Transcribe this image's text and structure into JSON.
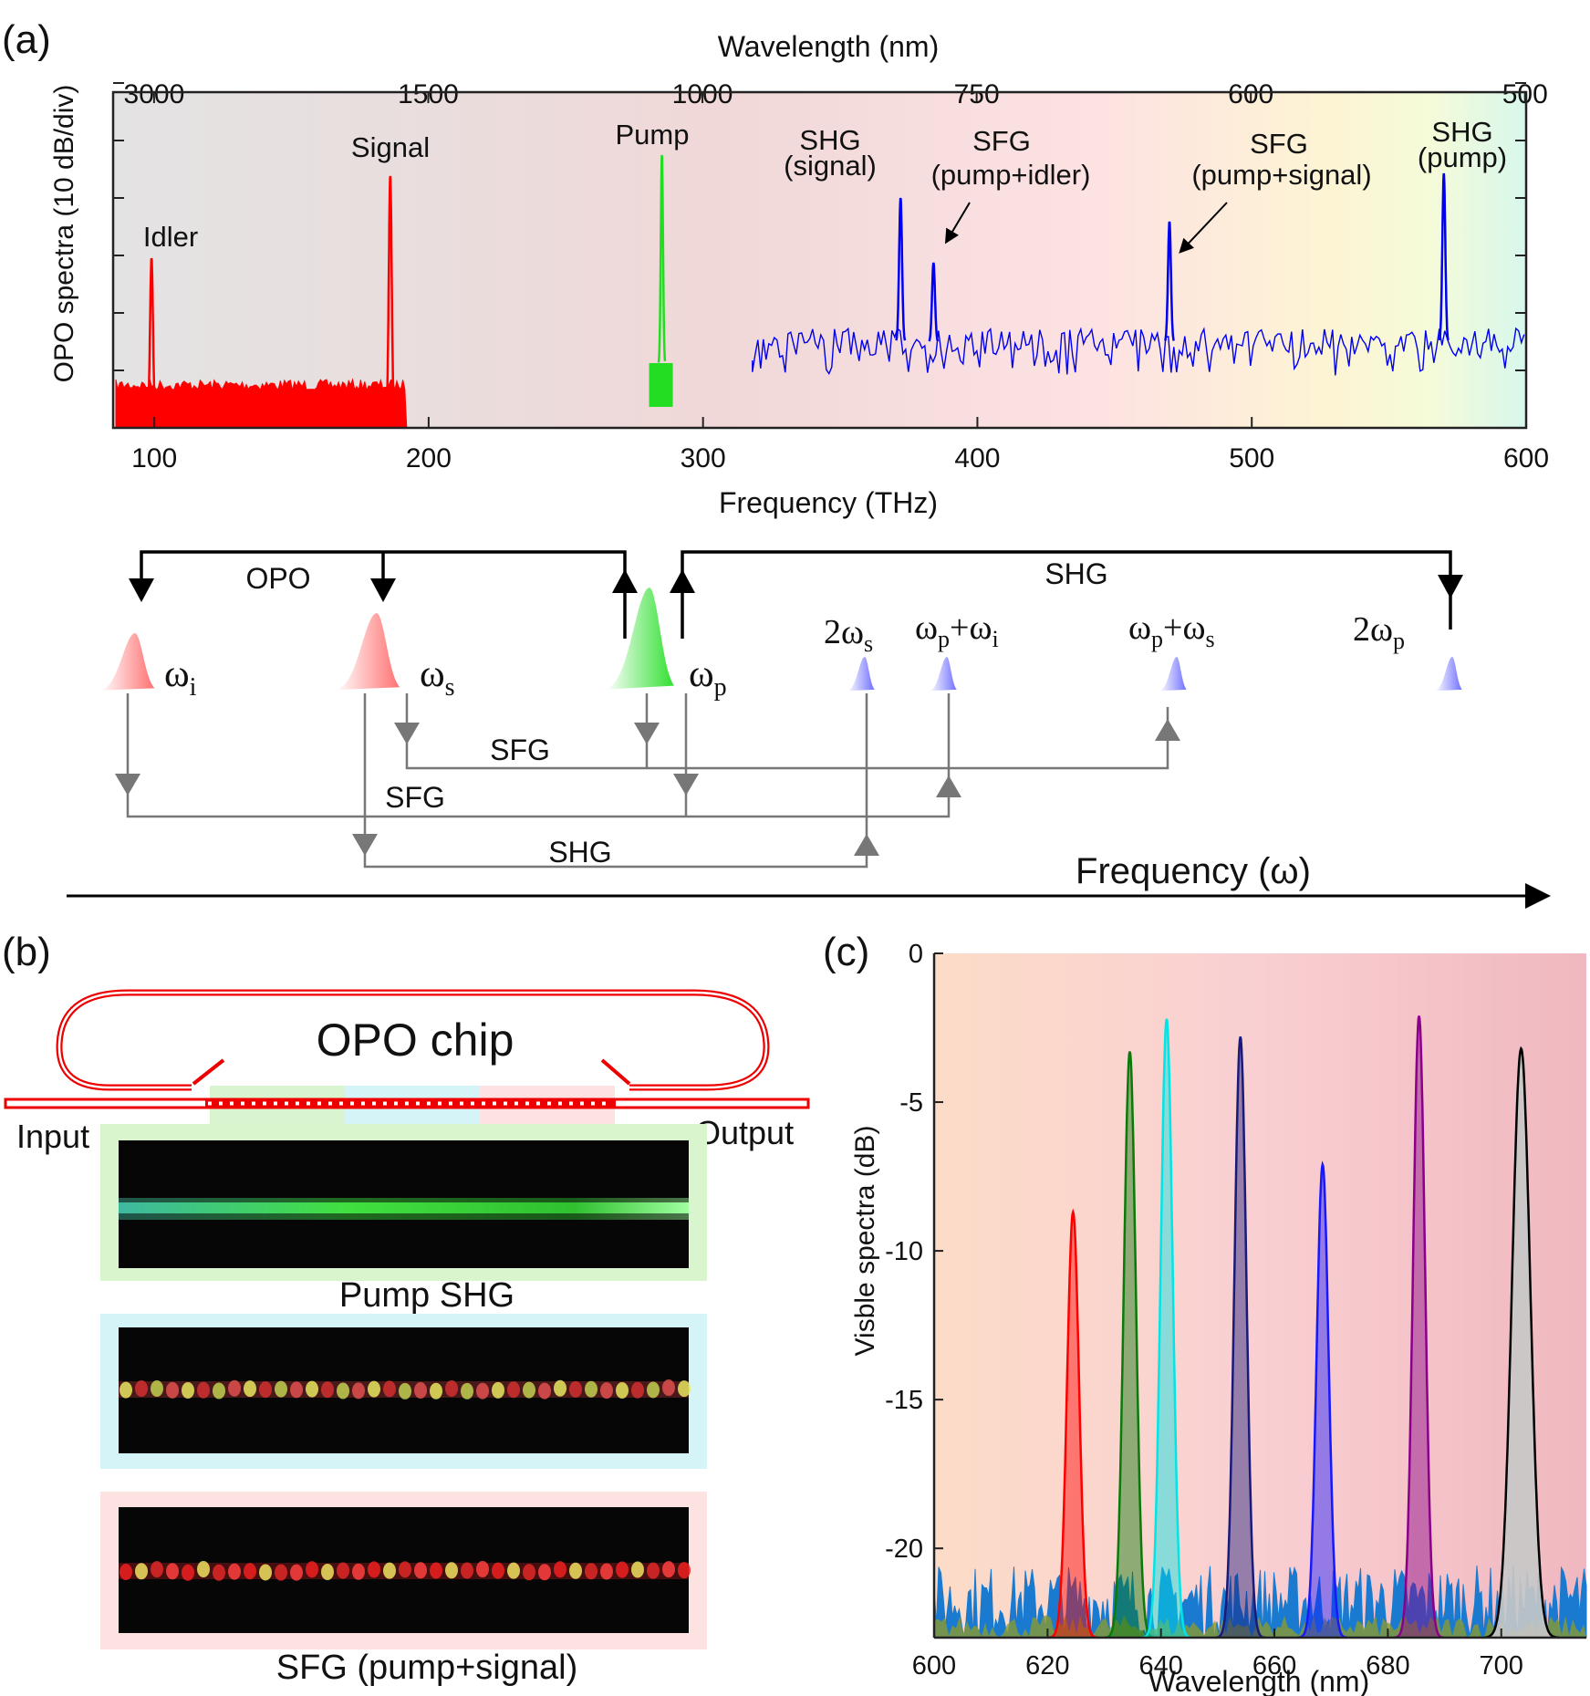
{
  "panel_a": {
    "label": "(a)",
    "top_axis_title": "Wavelength (nm)",
    "top_ticks": [
      "3000",
      "1500",
      "1000",
      "750",
      "600",
      "500"
    ],
    "ylabel": "OPO spectra (10 dB/div)",
    "bottom_ticks": [
      "100",
      "200",
      "300",
      "400",
      "500",
      "600"
    ],
    "xlabel": "Frequency (THz)",
    "ann": {
      "idler": "Idler",
      "signal": "Signal",
      "pump": "Pump",
      "shg_signal_1": "SHG",
      "shg_signal_2": "(signal)",
      "sfg_pi_1": "SFG",
      "sfg_pi_2": "(pump+idler)",
      "sfg_ps_1": "SFG",
      "sfg_ps_2": "(pump+signal)",
      "shg_pump_1": "SHG",
      "shg_pump_2": "(pump)"
    }
  },
  "diagram": {
    "opo": "OPO",
    "shg_top": "SHG",
    "omega": "ω",
    "sub_i": "i",
    "sub_s": "s",
    "sub_p": "p",
    "two": "2",
    "plus": "+",
    "sfg1": "SFG",
    "sfg2": "SFG",
    "shg_bottom": "SHG",
    "axis": "Frequency (ω)"
  },
  "panel_b": {
    "label": "(b)",
    "chip_title": "OPO chip",
    "input": "Input",
    "output": "Output",
    "cap1": "Pump SHG",
    "cap3": "SFG (pump+signal)"
  },
  "panel_c": {
    "label": "(c)",
    "ylabel": "Visble spectra (dB)",
    "xlabel": "Wavelength (nm)",
    "yticks": [
      "0",
      "-5",
      "-10",
      "-15",
      "-20"
    ],
    "xticks": [
      "600",
      "620",
      "640",
      "660",
      "680",
      "700"
    ]
  },
  "chart_data": [
    {
      "type": "line",
      "title": "",
      "xlabel": "Frequency (THz)",
      "ylabel": "OPO spectra (10 dB/div)",
      "xlim": [
        85,
        600
      ],
      "secondary_x": {
        "label": "Wavelength (nm)",
        "ticks": [
          3000,
          1500,
          1000,
          750,
          600,
          500
        ]
      },
      "series": [
        {
          "name": "Idler",
          "color": "#ff0000",
          "peak_x": 99,
          "noise_range": [
            86,
            192
          ]
        },
        {
          "name": "Signal",
          "color": "#ff0000",
          "peak_x": 186
        },
        {
          "name": "Pump",
          "color": "#22dd22",
          "peak_x": 285
        },
        {
          "name": "SHG (signal)",
          "color": "#0000ee",
          "peak_x": 372
        },
        {
          "name": "SFG (pump+idler)",
          "color": "#0000ee",
          "peak_x": 384
        },
        {
          "name": "SFG (pump+signal)",
          "color": "#0000ee",
          "peak_x": 470
        },
        {
          "name": "SHG (pump)",
          "color": "#0000ee",
          "peak_x": 570,
          "noise_range": [
            318,
            600
          ]
        }
      ]
    },
    {
      "type": "area",
      "xlabel": "Wavelength (nm)",
      "ylabel": "Visble spectra (dB)",
      "xlim": [
        600,
        715
      ],
      "ylim": [
        -23,
        0
      ],
      "series": [
        {
          "center": 624.5,
          "peak": -8.7,
          "color": "#ff0000"
        },
        {
          "center": 634.5,
          "peak": -3.3,
          "color": "#0a7a0a"
        },
        {
          "center": 641.0,
          "peak": -2.2,
          "color": "#00e5e5"
        },
        {
          "center": 654.0,
          "peak": -2.8,
          "color": "#1a1a7a"
        },
        {
          "center": 668.5,
          "peak": -7.1,
          "color": "#1818ff"
        },
        {
          "center": 685.5,
          "peak": -2.1,
          "color": "#8a008a"
        },
        {
          "center": 703.5,
          "peak": -3.2,
          "color": "#000000"
        }
      ]
    }
  ]
}
